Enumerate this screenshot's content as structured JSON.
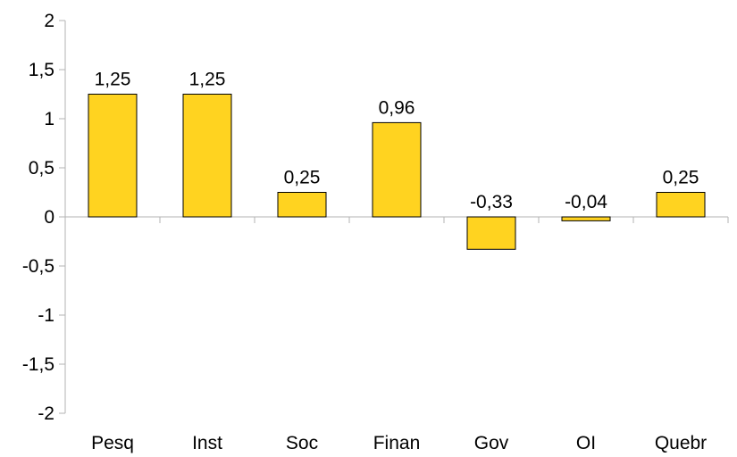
{
  "chart_data": {
    "type": "bar",
    "categories": [
      "Pesq",
      "Inst",
      "Soc",
      "Finan",
      "Gov",
      "OI",
      "Quebr"
    ],
    "values": [
      1.25,
      1.25,
      0.25,
      0.96,
      -0.33,
      -0.04,
      0.25
    ],
    "value_labels": [
      "1,25",
      "1,25",
      "0,25",
      "0,96",
      "-0,33",
      "-0,04",
      "0,25"
    ],
    "yticks": [
      2,
      1.5,
      1,
      0.5,
      0,
      -0.5,
      -1,
      -1.5,
      -2
    ],
    "ytick_labels": [
      "2",
      "1,5",
      "1",
      "0,5",
      "0",
      "-0,5",
      "-1",
      "-1,5",
      "-2"
    ],
    "ylim": [
      -2,
      2
    ],
    "grid": false,
    "legend": "none",
    "bar_color": "#ffd320",
    "bar_edge_color": "#000000",
    "title": "",
    "xlabel": "",
    "ylabel": ""
  }
}
